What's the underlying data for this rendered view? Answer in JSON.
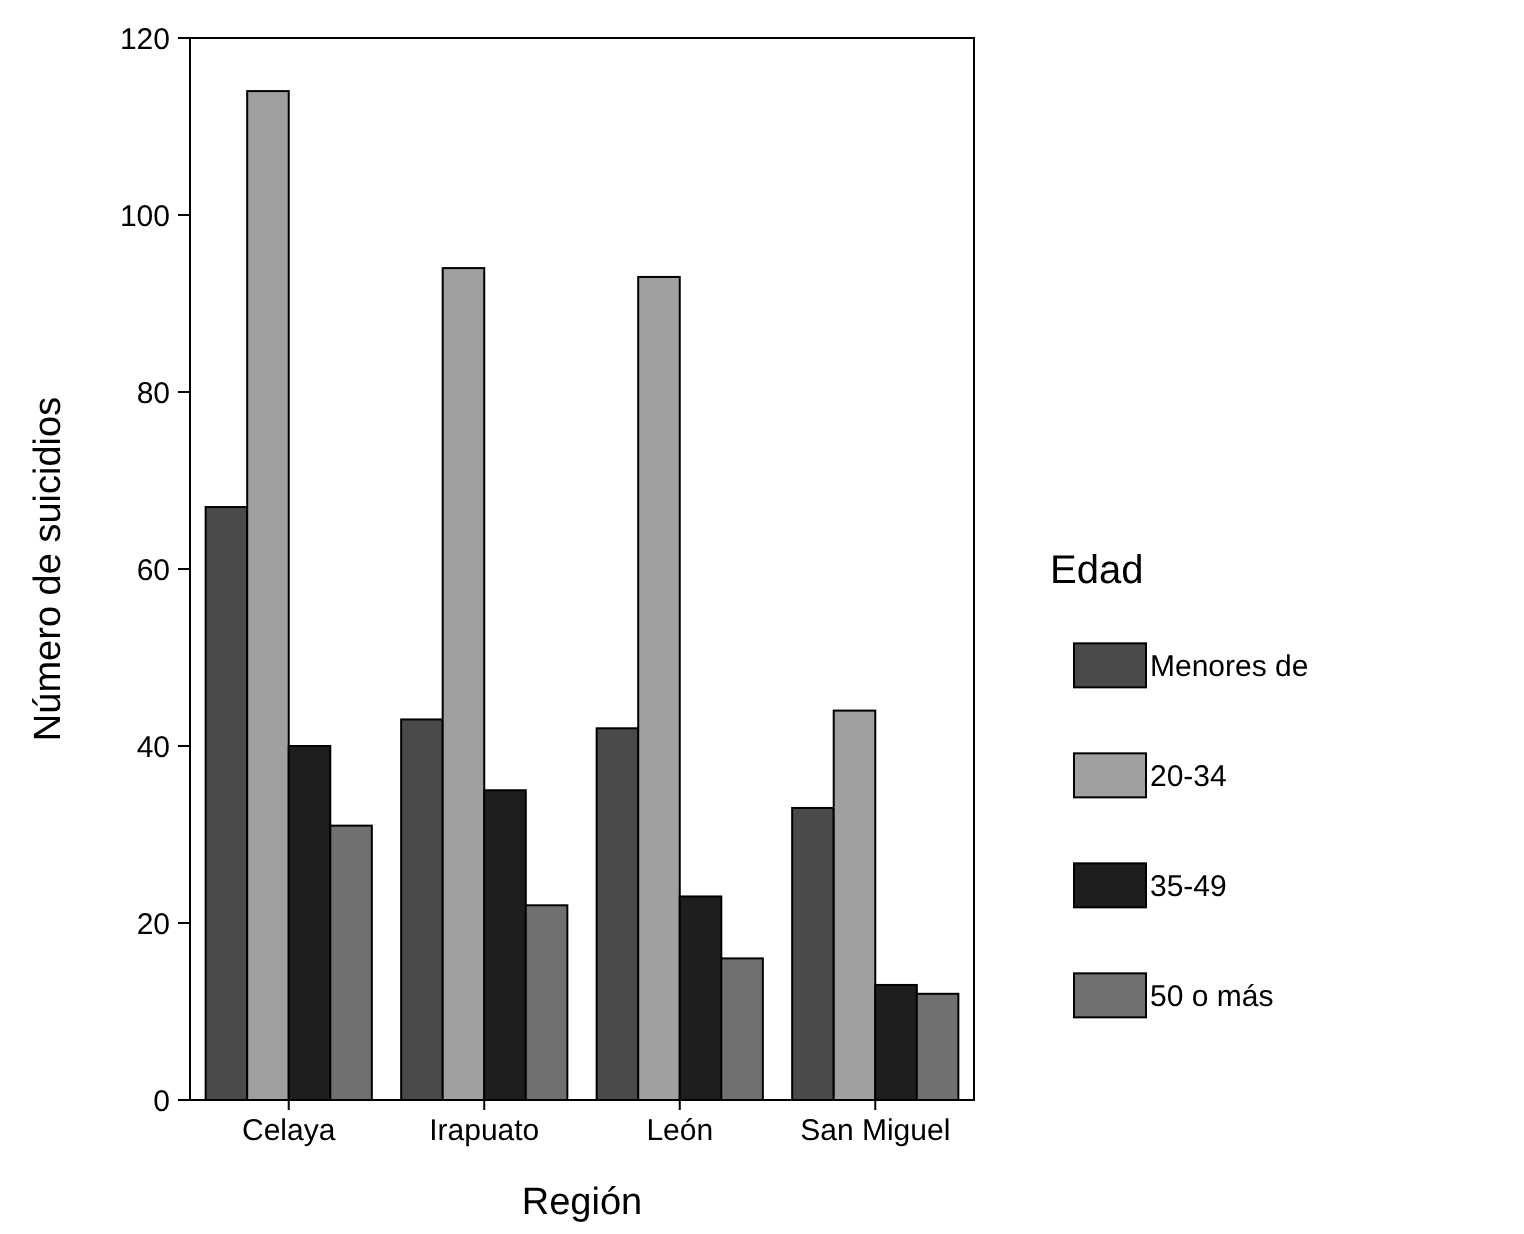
{
  "chart_data": {
    "type": "bar",
    "xlabel": "Región",
    "ylabel": "Número de suicidios",
    "legend_title": "Edad",
    "legend": "right",
    "categories": [
      "Celaya",
      "Irapuato",
      "León",
      "San Miguel"
    ],
    "ylim": [
      0,
      120
    ],
    "yticks": [
      0,
      20,
      40,
      60,
      80,
      100,
      120
    ],
    "series": [
      {
        "name": "Menores de",
        "color": "#4a4a4a",
        "values": [
          67,
          43,
          42,
          33
        ]
      },
      {
        "name": "20-34",
        "color": "#a0a0a0",
        "values": [
          114,
          94,
          93,
          44
        ]
      },
      {
        "name": "35-49",
        "color": "#1e1e1e",
        "values": [
          40,
          35,
          23,
          13
        ]
      },
      {
        "name": "50 o más",
        "color": "#707070",
        "values": [
          31,
          22,
          16,
          12
        ]
      }
    ]
  }
}
